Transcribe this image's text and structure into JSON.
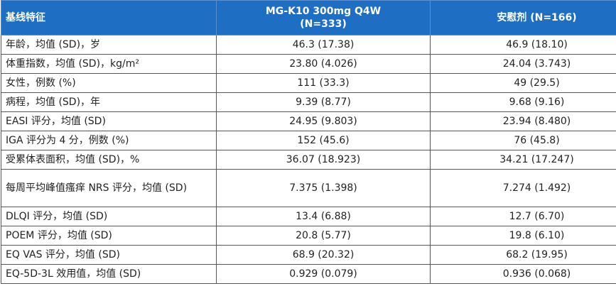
{
  "table": {
    "header": [
      "基线特征",
      "MG-K10 300mg Q4W\n(N=333)",
      "安慰剂 (N=166)"
    ],
    "rows": [
      [
        "年龄，均值 (SD)，岁",
        "46.3 (17.38)",
        "46.9 (18.10)"
      ],
      [
        "体重指数，均值 (SD)，kg/m²",
        "23.80 (4.026)",
        "24.04 (3.743)"
      ],
      [
        "女性，例数 (%)",
        "111 (33.3)",
        "49 (29.5)"
      ],
      [
        "病程，均值 (SD)，年",
        "9.39 (8.77)",
        "9.68 (9.16)"
      ],
      [
        "EASI 评分，均值 (SD)",
        "24.95 (9.803)",
        "23.94 (8.480)"
      ],
      [
        "IGA 评分为 4 分，例数 (%)",
        "152 (45.6)",
        "76 (45.8)"
      ],
      [
        "受累体表面积，均值 (SD)，%",
        "36.07 (18.923)",
        "34.21 (17.247)"
      ],
      [
        "每周平均峰值瘙痒 NRS 评分，均值 (SD)",
        "7.375 (1.398)",
        "7.274 (1.492)"
      ],
      [
        "DLQI 评分，均值 (SD)",
        "13.4 (6.88)",
        "12.7 (6.70)"
      ],
      [
        "POEM 评分，均值 (SD)",
        "20.8 (5.77)",
        "19.8 (6.10)"
      ],
      [
        "EQ VAS 评分，均值 (SD)",
        "68.9 (20.32)",
        "68.2 (19.95)"
      ],
      [
        "EQ-5D-3L 效用值，均值 (SD)",
        "0.929 (0.079)",
        "0.936 (0.068)"
      ]
    ]
  }
}
